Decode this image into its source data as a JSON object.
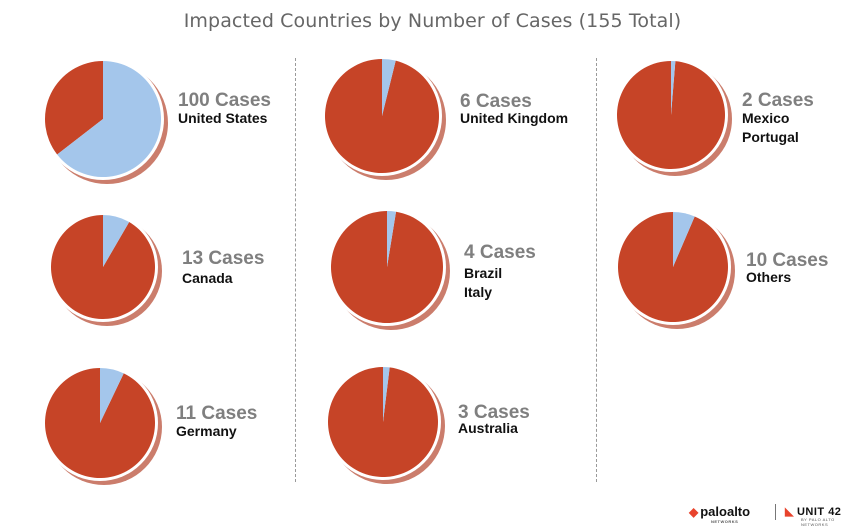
{
  "chart_data": {
    "type": "pie",
    "title": "Impacted Countries by Number of Cases (155 Total)",
    "total": 155,
    "colors": {
      "slice": "#a4c6eb",
      "rest": "#c64427",
      "ring": "#cb7d6c",
      "border": "#ffffff"
    },
    "groups": [
      {
        "cases": 100,
        "cases_label": "100 Cases",
        "countries": [
          "United States"
        ]
      },
      {
        "cases": 6,
        "cases_label": "6 Cases",
        "countries": [
          "United Kingdom"
        ]
      },
      {
        "cases": 2,
        "cases_label": "2 Cases",
        "countries": [
          "Mexico",
          "Portugal"
        ]
      },
      {
        "cases": 13,
        "cases_label": "13 Cases",
        "countries": [
          "Canada"
        ]
      },
      {
        "cases": 4,
        "cases_label": "4 Cases",
        "countries": [
          "Brazil",
          "Italy"
        ]
      },
      {
        "cases": 10,
        "cases_label": "10 Cases",
        "countries": [
          "Others"
        ]
      },
      {
        "cases": 11,
        "cases_label": "11 Cases",
        "countries": [
          "Germany"
        ]
      },
      {
        "cases": 3,
        "cases_label": "3 Cases",
        "countries": [
          "Australia"
        ]
      }
    ]
  },
  "footer": {
    "brand_primary": "paloalto",
    "brand_primary_sub": "NETWORKS",
    "brand_secondary": "UNIT 42",
    "brand_secondary_sub": "BY PALO ALTO NETWORKS"
  }
}
